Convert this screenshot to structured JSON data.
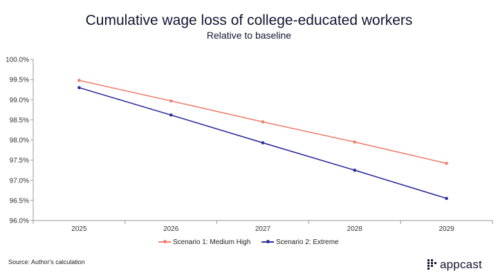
{
  "header": {
    "title": "Cumulative wage loss of college-educated workers",
    "subtitle": "Relative to baseline"
  },
  "chart_data": {
    "type": "line",
    "title": "Cumulative wage loss of college-educated workers",
    "subtitle": "Relative to baseline",
    "x": [
      "2025",
      "2026",
      "2027",
      "2028",
      "2029"
    ],
    "yticks": [
      "96.0%",
      "96.5%",
      "97.0%",
      "97.5%",
      "98.0%",
      "98.5%",
      "99.0%",
      "99.5%",
      "100.0%"
    ],
    "ylim": [
      96.0,
      100.0
    ],
    "grid": false,
    "legend_position": "bottom",
    "series": [
      {
        "name": "Scenario 1:  Medium High",
        "color": "#f08070",
        "values": [
          99.48,
          98.97,
          98.45,
          97.95,
          97.42
        ]
      },
      {
        "name": "Scenario 2: Extreme",
        "color": "#2e2e9e",
        "values": [
          99.3,
          98.62,
          97.93,
          97.25,
          96.55
        ]
      }
    ]
  },
  "footer": {
    "source": "Source: Author's calculation",
    "brand": "appcast"
  },
  "colors": {
    "text": "#141432",
    "axis": "#888888"
  }
}
